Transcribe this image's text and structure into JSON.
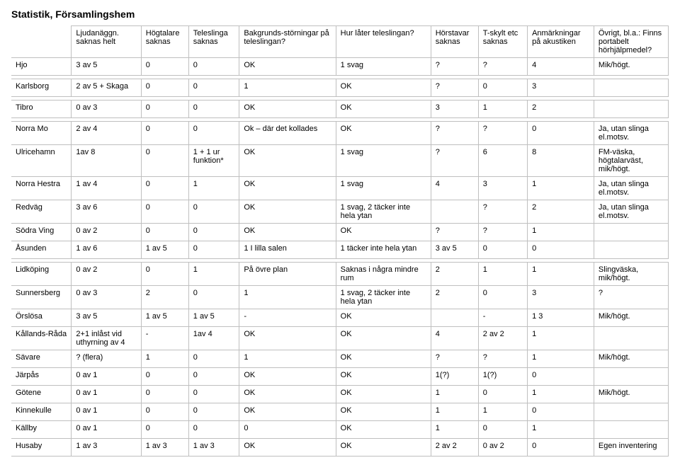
{
  "title": "Statistik, Församlingshem",
  "columns": [
    "",
    "Ljudanäggn. saknas  helt",
    "Högtalare saknas",
    "Teleslinga saknas",
    "Bakgrunds-störningar på teleslingan?",
    "Hur låter teleslingan?",
    "Hörstavar saknas",
    "T-skylt etc saknas",
    "Anmärkningar på akustiken",
    "Övrigt, bl.a.: Finns portabelt hörhjälpmedel?"
  ],
  "groups": [
    [
      [
        "Hjo",
        "3 av 5",
        "0",
        "0",
        "OK",
        "1 svag",
        "?",
        "?",
        "4",
        "Mik/högt."
      ]
    ],
    [
      [
        "Karlsborg",
        "2 av 5 + Skaga",
        "0",
        "0",
        "1",
        "OK",
        "?",
        "0",
        "3",
        ""
      ]
    ],
    [
      [
        "Tibro",
        "0 av 3",
        "0",
        "0",
        "OK",
        "OK",
        "3",
        "1",
        "2",
        ""
      ]
    ],
    [
      [
        "Norra Mo",
        "2 av 4",
        "0",
        "0",
        "Ok – där det kollades",
        "OK",
        "?",
        "?",
        "0",
        "Ja, utan slinga el.motsv."
      ],
      [
        "Ulricehamn",
        "1av 8",
        "0",
        "1 + 1 ur funktion*",
        "OK",
        "1 svag",
        "?",
        "6",
        "8",
        "FM-väska, högtalarväst, mik/högt."
      ],
      [
        "Norra Hestra",
        "1 av 4",
        "0",
        "1",
        "OK",
        "1 svag",
        "4",
        "3",
        "1",
        "Ja, utan slinga el.motsv."
      ],
      [
        "Redväg",
        "3 av 6",
        "0",
        "0",
        "OK",
        "1 svag, 2 täcker inte hela ytan",
        "",
        "?",
        "2",
        "Ja, utan slinga el.motsv."
      ],
      [
        "Södra Ving",
        "0 av 2",
        "0",
        "0",
        "OK",
        "OK",
        "?",
        "?",
        "1",
        ""
      ],
      [
        "Åsunden",
        "1 av 6",
        "1 av 5",
        "0",
        "1 I lilla salen",
        "1 täcker inte hela ytan",
        "3 av 5",
        "0",
        "0",
        ""
      ]
    ],
    [
      [
        "Lidköping",
        "0 av 2",
        "0",
        "1",
        "På övre plan",
        "Saknas i några mindre rum",
        "2",
        "1",
        "1",
        "Slingväska, mik/högt."
      ],
      [
        "Sunnersberg",
        "0 av 3",
        "2",
        "0",
        "1",
        "1 svag, 2 täcker inte hela ytan",
        "2",
        "0",
        "3",
        "?"
      ],
      [
        "Örslösa",
        "3 av 5",
        "1 av 5",
        "1 av 5",
        "-",
        "OK",
        "",
        "-",
        "1   3",
        "Mik/högt."
      ],
      [
        "Kållands-Råda",
        "2+1 inlåst vid uthyrning av 4",
        "-",
        "1av 4",
        "OK",
        "OK",
        "4",
        "2 av 2",
        "1",
        ""
      ],
      [
        "Sävare",
        "? (flera)",
        "1",
        "0",
        "1",
        "OK",
        "?",
        "?",
        "1",
        "Mik/högt."
      ],
      [
        "Järpås",
        "0 av 1",
        "0",
        "0",
        "OK",
        "OK",
        "1(?)",
        "1(?)",
        "0",
        ""
      ],
      [
        "Götene",
        "0 av 1",
        "0",
        "0",
        "OK",
        "OK",
        "1",
        "0",
        "1",
        "Mik/högt."
      ],
      [
        "Kinnekulle",
        "0 av 1",
        "0",
        "0",
        "OK",
        "OK",
        "1",
        "1",
        "0",
        ""
      ],
      [
        "Källby",
        "0 av 1",
        "0",
        "0",
        "0",
        "OK",
        "1",
        "0",
        "1",
        ""
      ],
      [
        "Husaby",
        "1 av 3",
        "1 av 3",
        "1 av 3",
        "OK",
        "OK",
        "2 av 2",
        "0 av 2",
        "0",
        "Egen inventering"
      ]
    ]
  ]
}
